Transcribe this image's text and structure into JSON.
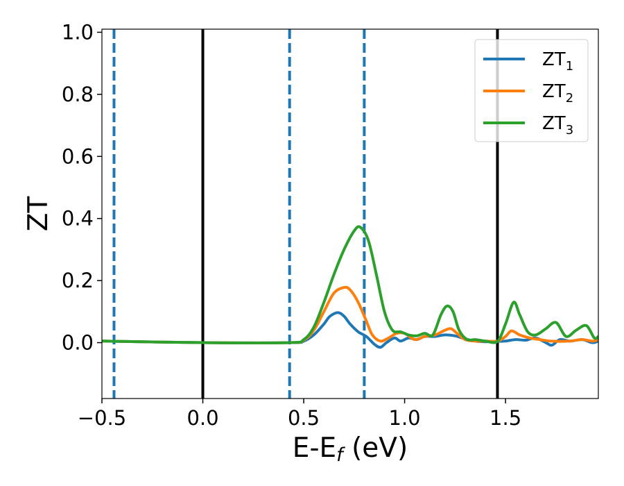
{
  "chart_data": {
    "type": "line",
    "xlabel": "E-E",
    "xlabel_sub": "f",
    "xlabel_unit": " (eV)",
    "ylabel": "ZT",
    "xlim": [
      -0.5,
      1.96
    ],
    "ylim": [
      -0.18,
      1.01
    ],
    "xticks": [
      -0.5,
      0.0,
      0.5,
      1.0,
      1.5
    ],
    "xtick_labels": [
      "−0.5",
      "0.0",
      "0.5",
      "1.0",
      "1.5"
    ],
    "yticks": [
      0.0,
      0.2,
      0.4,
      0.6,
      0.8,
      1.0
    ],
    "ytick_labels": [
      "0.0",
      "0.2",
      "0.4",
      "0.6",
      "0.8",
      "1.0"
    ],
    "grid": false,
    "legend_position": "top-right",
    "vlines": [
      {
        "x": -0.44,
        "style": "dashed",
        "color": "#1f77b4"
      },
      {
        "x": 0.0,
        "style": "solid",
        "color": "#000000"
      },
      {
        "x": 0.43,
        "style": "dashed",
        "color": "#1f77b4"
      },
      {
        "x": 0.8,
        "style": "dashed",
        "color": "#1f77b4"
      },
      {
        "x": 1.46,
        "style": "solid",
        "color": "#000000"
      }
    ],
    "series": [
      {
        "name": "ZT",
        "name_sub": "1",
        "color": "#1f77b4",
        "x": [
          -0.5,
          0.0,
          0.43,
          0.5,
          0.55,
          0.6,
          0.63,
          0.67,
          0.7,
          0.73,
          0.77,
          0.81,
          0.85,
          0.88,
          0.91,
          0.95,
          0.98,
          1.02,
          1.06,
          1.1,
          1.15,
          1.2,
          1.25,
          1.3,
          1.35,
          1.4,
          1.45,
          1.5,
          1.55,
          1.6,
          1.65,
          1.7,
          1.73,
          1.77,
          1.82,
          1.88,
          1.93,
          1.96
        ],
        "y": [
          0.005,
          0.0,
          0.0,
          0.005,
          0.025,
          0.06,
          0.085,
          0.097,
          0.085,
          0.06,
          0.035,
          0.02,
          -0.005,
          -0.015,
          0.0,
          0.015,
          0.005,
          0.015,
          0.01,
          0.02,
          0.02,
          0.025,
          0.022,
          0.012,
          0.005,
          0.003,
          0.004,
          0.005,
          0.01,
          0.008,
          0.015,
          0.0,
          -0.008,
          0.01,
          0.005,
          0.01,
          0.0,
          0.005
        ]
      },
      {
        "name": "ZT",
        "name_sub": "2",
        "color": "#ff7f0e",
        "x": [
          -0.5,
          0.0,
          0.43,
          0.5,
          0.55,
          0.6,
          0.65,
          0.7,
          0.73,
          0.77,
          0.81,
          0.84,
          0.88,
          0.92,
          0.96,
          1.0,
          1.05,
          1.1,
          1.15,
          1.2,
          1.23,
          1.26,
          1.3,
          1.35,
          1.4,
          1.46,
          1.5,
          1.53,
          1.57,
          1.62,
          1.67,
          1.72,
          1.77,
          1.82,
          1.88,
          1.93,
          1.96
        ],
        "y": [
          0.005,
          0.0,
          0.0,
          0.008,
          0.04,
          0.1,
          0.16,
          0.178,
          0.17,
          0.13,
          0.07,
          0.025,
          0.005,
          0.015,
          0.03,
          0.03,
          0.01,
          0.02,
          0.025,
          0.04,
          0.045,
          0.03,
          0.01,
          0.005,
          0.005,
          0.005,
          0.02,
          0.038,
          0.025,
          0.015,
          0.01,
          0.005,
          0.004,
          0.005,
          0.01,
          0.005,
          0.01
        ]
      },
      {
        "name": "ZT",
        "name_sub": "3",
        "color": "#2ca02c",
        "x": [
          -0.5,
          0.0,
          0.43,
          0.5,
          0.55,
          0.6,
          0.65,
          0.7,
          0.75,
          0.78,
          0.82,
          0.86,
          0.9,
          0.94,
          0.98,
          1.02,
          1.06,
          1.1,
          1.14,
          1.18,
          1.21,
          1.24,
          1.27,
          1.31,
          1.35,
          1.4,
          1.46,
          1.5,
          1.54,
          1.57,
          1.61,
          1.65,
          1.7,
          1.75,
          1.8,
          1.85,
          1.9,
          1.94,
          1.96
        ],
        "y": [
          0.005,
          0.0,
          0.0,
          0.01,
          0.05,
          0.13,
          0.22,
          0.3,
          0.36,
          0.372,
          0.33,
          0.22,
          0.1,
          0.04,
          0.035,
          0.025,
          0.022,
          0.03,
          0.025,
          0.09,
          0.118,
          0.1,
          0.04,
          0.01,
          0.01,
          0.005,
          0.004,
          0.06,
          0.13,
          0.09,
          0.035,
          0.025,
          0.045,
          0.065,
          0.02,
          0.04,
          0.055,
          0.015,
          0.02
        ]
      }
    ]
  }
}
